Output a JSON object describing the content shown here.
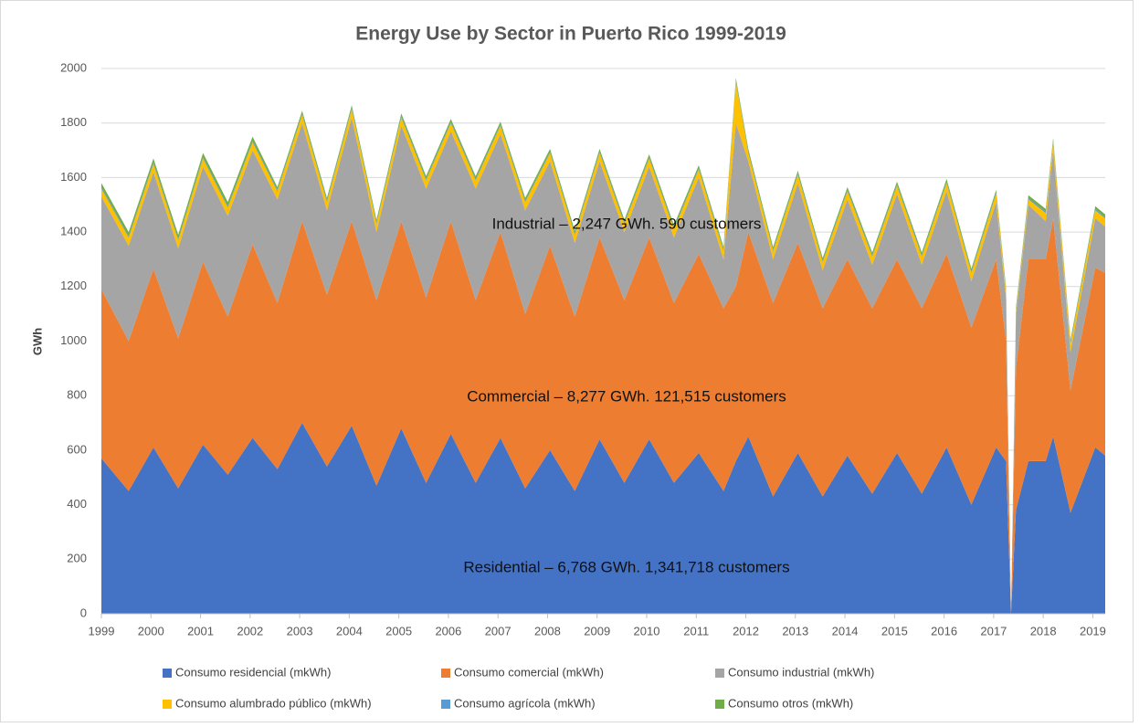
{
  "chart_data": {
    "type": "stacked_area",
    "title": "Energy Use by Sector in Puerto Rico 1999-2019",
    "y_label": "GWh",
    "xlim": [
      1999,
      2019.25
    ],
    "xticks": [
      1999,
      2000,
      2001,
      2002,
      2003,
      2004,
      2005,
      2006,
      2007,
      2008,
      2009,
      2010,
      2011,
      2012,
      2013,
      2014,
      2015,
      2016,
      2017,
      2018,
      2019
    ],
    "ylim": [
      0,
      2000
    ],
    "yticks": [
      0,
      200,
      400,
      600,
      800,
      1000,
      1200,
      1400,
      1600,
      1800,
      2000
    ],
    "grid": true,
    "legend": "bottom",
    "annotations": [
      "Industrial – 2,247 GWh. 590 customers",
      "Commercial – 8,277 GWh. 121,515 customers",
      "Residential – 6,768 GWh. 1,341,718 customers"
    ],
    "x": [
      1999,
      1999.55,
      2000.05,
      2000.55,
      2001.05,
      2001.55,
      2002.05,
      2002.55,
      2003.05,
      2003.55,
      2004.05,
      2004.55,
      2005.05,
      2005.55,
      2006.05,
      2006.55,
      2007.05,
      2007.55,
      2008.05,
      2008.55,
      2009.05,
      2009.55,
      2010.05,
      2010.55,
      2011.05,
      2011.55,
      2011.8,
      2012.05,
      2012.55,
      2013.05,
      2013.55,
      2014.05,
      2014.55,
      2015.05,
      2015.55,
      2016.05,
      2016.55,
      2017.05,
      2017.25,
      2017.35,
      2017.45,
      2017.7,
      2018.05,
      2018.2,
      2018.55,
      2019.05,
      2019.25
    ],
    "series": [
      {
        "name": "Consumo residencial (mkWh)",
        "color": "#4472c4",
        "values": [
          570,
          450,
          610,
          460,
          620,
          510,
          645,
          530,
          700,
          540,
          690,
          470,
          680,
          480,
          660,
          480,
          645,
          460,
          600,
          450,
          640,
          480,
          640,
          480,
          590,
          450,
          560,
          650,
          430,
          590,
          430,
          580,
          440,
          590,
          440,
          610,
          400,
          610,
          560,
          0,
          380,
          560,
          560,
          650,
          370,
          610,
          580
        ]
      },
      {
        "name": "Consumo comercial (mkWh)",
        "color": "#ed7d31",
        "values": [
          620,
          550,
          655,
          550,
          670,
          580,
          710,
          610,
          740,
          630,
          750,
          680,
          760,
          680,
          780,
          670,
          755,
          640,
          750,
          640,
          740,
          670,
          740,
          660,
          730,
          670,
          640,
          750,
          710,
          770,
          690,
          720,
          680,
          710,
          680,
          710,
          650,
          690,
          440,
          0,
          520,
          740,
          740,
          800,
          450,
          660,
          670
        ]
      },
      {
        "name": "Consumo industrial (mkWh)",
        "color": "#a5a5a5",
        "values": [
          340,
          350,
          355,
          330,
          350,
          370,
          345,
          380,
          360,
          310,
          380,
          250,
          350,
          400,
          330,
          410,
          360,
          380,
          310,
          270,
          280,
          250,
          260,
          240,
          280,
          180,
          600,
          260,
          160,
          220,
          140,
          220,
          160,
          240,
          160,
          230,
          170,
          210,
          160,
          0,
          200,
          200,
          140,
          250,
          140,
          180,
          170
        ]
      },
      {
        "name": "Consumo alumbrado público (mkWh)",
        "color": "#ffc000",
        "values": [
          30,
          30,
          30,
          30,
          30,
          30,
          30,
          30,
          30,
          30,
          30,
          30,
          30,
          30,
          30,
          30,
          30,
          30,
          30,
          30,
          30,
          30,
          30,
          30,
          30,
          30,
          150,
          30,
          30,
          30,
          30,
          30,
          30,
          30,
          30,
          30,
          30,
          30,
          20,
          0,
          10,
          20,
          30,
          30,
          30,
          30,
          30
        ]
      },
      {
        "name": "Consumo agrícola (mkWh)",
        "color": "#5b9bd5",
        "values": [
          5,
          5,
          5,
          5,
          5,
          5,
          5,
          5,
          5,
          5,
          5,
          5,
          5,
          5,
          5,
          5,
          5,
          5,
          5,
          5,
          5,
          5,
          5,
          5,
          5,
          5,
          5,
          5,
          5,
          5,
          5,
          5,
          5,
          5,
          5,
          5,
          5,
          5,
          5,
          0,
          5,
          5,
          5,
          5,
          5,
          5,
          5
        ]
      },
      {
        "name": "Consumo otros (mkWh)",
        "color": "#70ad47",
        "values": [
          15,
          15,
          15,
          15,
          15,
          15,
          15,
          10,
          10,
          10,
          10,
          10,
          10,
          10,
          10,
          10,
          10,
          10,
          10,
          10,
          10,
          10,
          10,
          10,
          10,
          10,
          10,
          10,
          10,
          10,
          10,
          10,
          10,
          10,
          10,
          10,
          10,
          10,
          10,
          0,
          10,
          10,
          10,
          10,
          10,
          10,
          10
        ]
      }
    ]
  }
}
